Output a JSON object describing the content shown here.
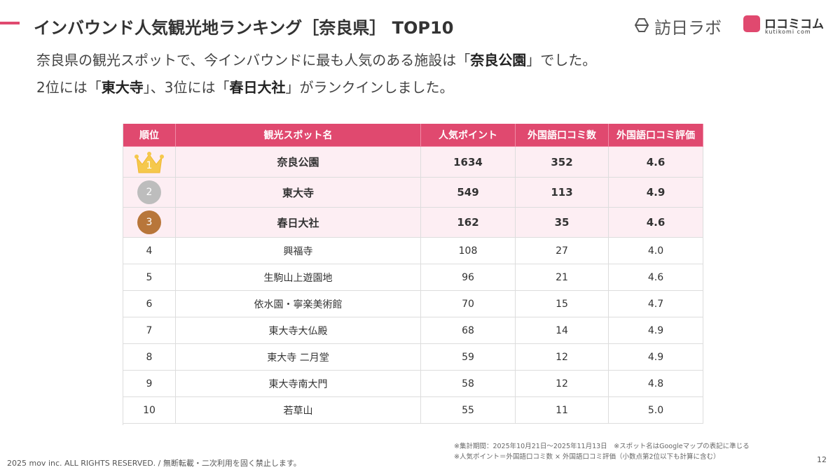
{
  "header": {
    "title": "インバウンド人気観光地ランキング［奈良県］ TOP10",
    "logo_a": "訪日ラボ",
    "logo_b": "ロコミコム",
    "logo_b_sub": "kutikomi com"
  },
  "intro": {
    "lines": [
      [
        "奈良県の観光スポットで、今インバウンドに最も人気のある施設は「",
        "奈良公園",
        "」でした。"
      ],
      [
        "2位には「",
        "東大寺",
        "」、3位には「",
        "春日大社",
        "」がランクインしました。"
      ]
    ]
  },
  "table": {
    "columns": [
      "順位",
      "観光スポット名",
      "人気ポイント",
      "外国語口コミ数",
      "外国語口コミ評価"
    ],
    "rows": [
      [
        1,
        "奈良公園",
        1634,
        352,
        "4.6"
      ],
      [
        2,
        "東大寺",
        549,
        113,
        "4.9"
      ],
      [
        3,
        "春日大社",
        162,
        35,
        "4.6"
      ],
      [
        4,
        "興福寺",
        108,
        27,
        "4.0"
      ],
      [
        5,
        "生駒山上遊園地",
        96,
        21,
        "4.6"
      ],
      [
        6,
        "依水園・寧楽美術館",
        70,
        15,
        "4.7"
      ],
      [
        7,
        "東大寺大仏殿",
        68,
        14,
        "4.9"
      ],
      [
        8,
        "東大寺 二月堂",
        59,
        12,
        "4.9"
      ],
      [
        9,
        "東大寺南大門",
        58,
        12,
        "4.8"
      ],
      [
        10,
        "若草山",
        55,
        11,
        "5.0"
      ]
    ]
  },
  "footer": {
    "notes": [
      "※集計期間：2025年10月21日〜2025年11月13日　※スポット名はGoogleマップの表記に準じる",
      "※人気ポイント＝外国語口コミ数 × 外国語口コミ評価（小数点第2位以下も計算に含む）"
    ],
    "copyright": "2025 mov inc. ALL RIGHTS RESERVED. / 無断転載・二次利用を固く禁止します。",
    "page": "12"
  }
}
